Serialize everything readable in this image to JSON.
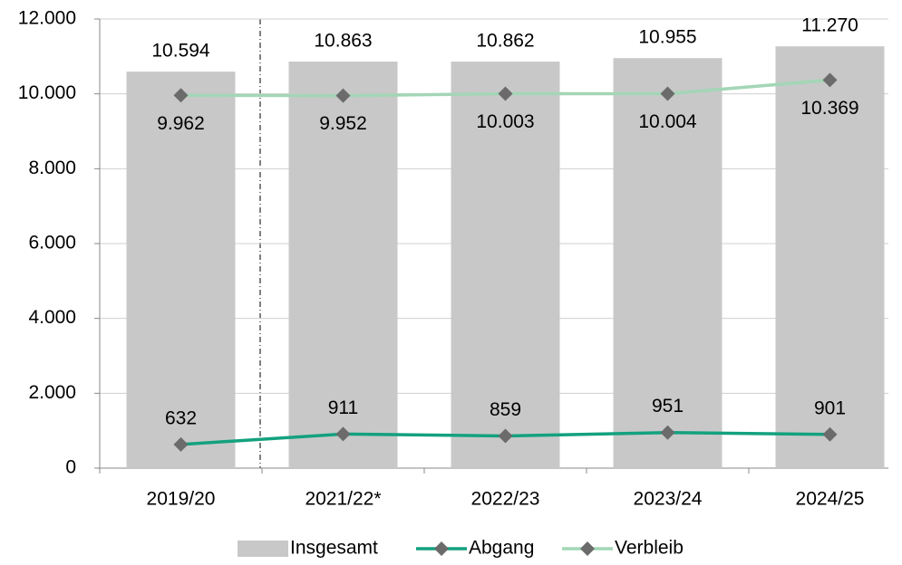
{
  "chart_data": {
    "type": "bar",
    "categories": [
      "2019/20",
      "2021/22*",
      "2022/23",
      "2023/24",
      "2024/25"
    ],
    "series": [
      {
        "name": "Insgesamt",
        "type": "bar",
        "color": "#c8c8c8",
        "values": [
          10594,
          10863,
          10862,
          10955,
          11270
        ],
        "value_labels": [
          "10.594",
          "10.863",
          "10.862",
          "10.955",
          "11.270"
        ]
      },
      {
        "name": "Abgang",
        "type": "line",
        "color": "#13a17e",
        "marker_color": "#6b6b6b",
        "values": [
          632,
          911,
          859,
          951,
          901
        ],
        "value_labels": [
          "632",
          "911",
          "859",
          "951",
          "901"
        ]
      },
      {
        "name": "Verbleib",
        "type": "line",
        "color": "#a3d6b6",
        "marker_color": "#6b6b6b",
        "values": [
          9962,
          9952,
          10003,
          10004,
          10369
        ],
        "value_labels": [
          "9.962",
          "9.952",
          "10.003",
          "10.004",
          "10.369"
        ]
      }
    ],
    "ylim": [
      0,
      12000
    ],
    "yticks": [
      0,
      {
        "value": 2000,
        "label": "2.000"
      },
      {
        "value": 4000,
        "label": "4.000"
      },
      {
        "value": 6000,
        "label": "6.000"
      },
      {
        "value": 8000,
        "label": "8.000"
      },
      {
        "value": 10000,
        "label": "10.000"
      },
      {
        "value": 12000,
        "label": "12.000"
      }
    ],
    "grid": true,
    "legend": "bottom"
  }
}
